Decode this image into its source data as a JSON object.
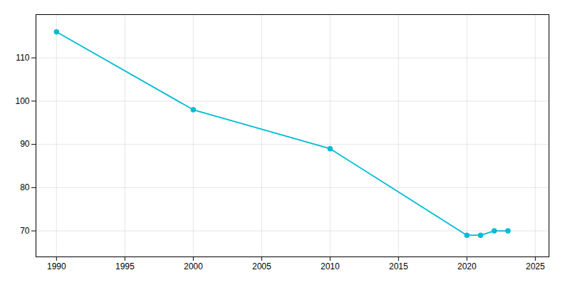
{
  "chart_data": {
    "type": "line",
    "x": [
      1990,
      2000,
      2010,
      2020,
      2021,
      2022,
      2023
    ],
    "values": [
      116,
      98,
      89,
      69,
      69,
      70,
      70
    ],
    "color": "#00bcd4",
    "marker": "circle",
    "xlim": [
      1988.5,
      2026
    ],
    "ylim": [
      64,
      120
    ],
    "xticks": [
      1990,
      1995,
      2000,
      2005,
      2010,
      2015,
      2020,
      2025
    ],
    "yticks": [
      70,
      80,
      90,
      100,
      110
    ],
    "grid": true
  }
}
